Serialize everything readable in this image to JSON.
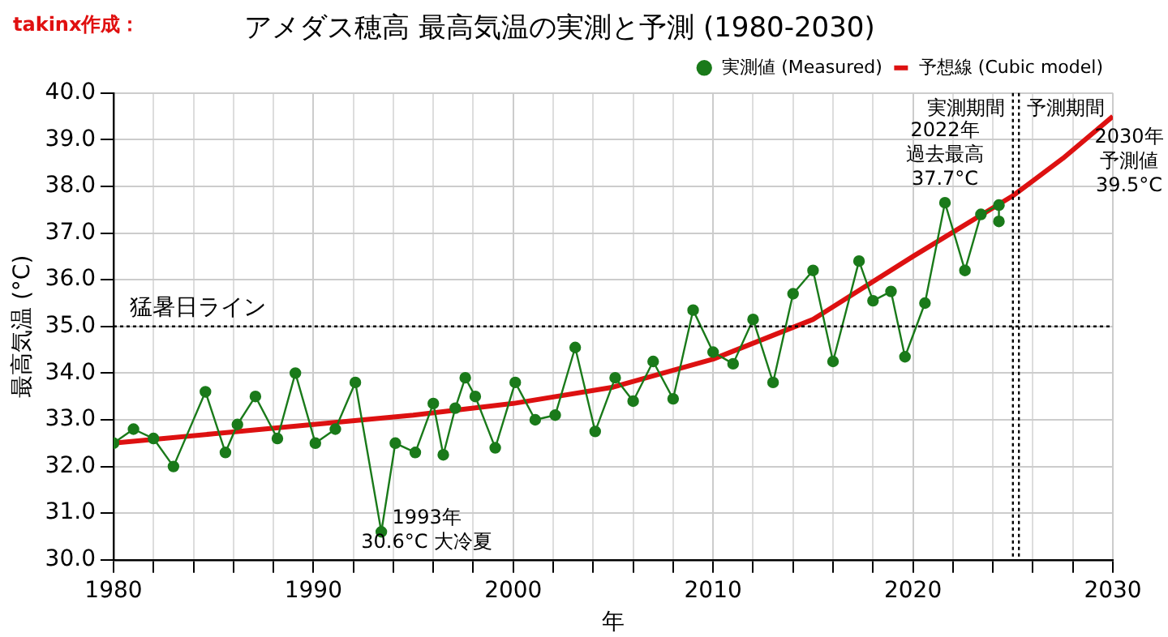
{
  "chart_data": {
    "type": "line",
    "title": "アメダス穂高 最高気温の実測と予測 (1980-2030)",
    "xlabel": "年",
    "ylabel": "最高気温 (°C)",
    "xlim": [
      1980,
      2030
    ],
    "xticks": [
      1980,
      {
        "value": 1982,
        "label": null
      },
      {
        "value": 1984,
        "label": null
      },
      {
        "value": 1986,
        "label": null
      },
      {
        "value": 1988,
        "label": null
      },
      1990,
      {
        "value": 1992,
        "label": null
      },
      {
        "value": 1994,
        "label": null
      },
      {
        "value": 1996,
        "label": null
      },
      {
        "value": 1998,
        "label": null
      },
      2000,
      {
        "value": 2002,
        "label": null
      },
      {
        "value": 2004,
        "label": null
      },
      {
        "value": 2006,
        "label": null
      },
      {
        "value": 2008,
        "label": null
      },
      2010,
      {
        "value": 2012,
        "label": null
      },
      {
        "value": 2014,
        "label": null
      },
      {
        "value": 2016,
        "label": null
      },
      {
        "value": 2018,
        "label": null
      },
      2020,
      {
        "value": 2022,
        "label": null
      },
      {
        "value": 2024,
        "label": null
      },
      {
        "value": 2026,
        "label": null
      },
      {
        "value": 2028,
        "label": null
      },
      2030
    ],
    "ylim": [
      30,
      40
    ],
    "yticks": [
      {
        "value": 30,
        "label": "30.0"
      },
      {
        "value": 31,
        "label": "31.0"
      },
      {
        "value": 32,
        "label": "32.0"
      },
      {
        "value": 33,
        "label": "33.0"
      },
      {
        "value": 34,
        "label": "34.0"
      },
      {
        "value": 35,
        "label": "35.0"
      },
      {
        "value": 36,
        "label": "36.0"
      },
      {
        "value": 37,
        "label": "37.0"
      },
      {
        "value": 38,
        "label": "38.0"
      },
      {
        "value": 39,
        "label": "39.0"
      },
      {
        "value": 40,
        "label": "40.0"
      }
    ],
    "grid": true,
    "legend": "top right",
    "series": [
      {
        "name": "実測値 (Measured)",
        "color": "#1a7a1a",
        "marker": "circle",
        "x": [
          1980,
          1981,
          1982,
          1983,
          1984.6,
          1985.6,
          1986.2,
          1987.1,
          1988.2,
          1989.1,
          1990.1,
          1991.1,
          1992.1,
          1993.4,
          1994.1,
          1995.1,
          1996,
          1996.5,
          1997.1,
          1997.6,
          1998.1,
          1999.1,
          2000.1,
          2001.1,
          2002.1,
          2003.1,
          2004.1,
          2005.1,
          2006,
          2007,
          2008,
          2009,
          2010,
          2011,
          2012,
          2013,
          2014,
          2015,
          2016,
          2017.3,
          2018,
          2018.9,
          2019.6,
          2020.6,
          2021.6,
          2022.6,
          2023.4,
          2024.3,
          2024.3
        ],
        "values": [
          32.5,
          32.8,
          32.6,
          32.0,
          33.6,
          32.3,
          32.9,
          33.5,
          32.6,
          34.0,
          32.5,
          32.8,
          33.8,
          30.6,
          32.5,
          32.3,
          33.35,
          32.25,
          33.25,
          33.9,
          33.5,
          32.4,
          33.8,
          33.0,
          33.1,
          34.55,
          32.75,
          33.9,
          33.4,
          34.25,
          33.45,
          35.35,
          34.45,
          34.2,
          35.15,
          33.8,
          35.7,
          36.2,
          34.25,
          36.4,
          35.55,
          35.75,
          34.35,
          35.5,
          37.65,
          36.2,
          37.4,
          37.6,
          37.25
        ]
      },
      {
        "name": "予想線 (Cubic model)",
        "color": "#dd1111",
        "marker": "none",
        "x": [
          1980,
          1985,
          1990,
          1995,
          2000,
          2005,
          2010,
          2015,
          2020,
          2025,
          2027.5,
          2030
        ],
        "values": [
          32.5,
          32.7,
          32.9,
          33.1,
          33.35,
          33.7,
          34.3,
          35.15,
          36.5,
          37.8,
          38.6,
          39.5
        ]
      }
    ],
    "ref_lines": [
      {
        "axis": "y",
        "value": 35,
        "label": "猛暑日ライン",
        "line_style": "dotted"
      },
      {
        "axis": "x",
        "value": 2025,
        "label": "実測期間",
        "line_style": "dotted"
      },
      {
        "axis": "x",
        "value": 2025.3,
        "label": "予測期間",
        "line_style": "dotted"
      }
    ],
    "annotations": [
      "1993年",
      {
        "text": "30.6°C 大冷夏",
        "x": 1993.4,
        "y": 30.6
      },
      "2022年",
      "過去最高",
      {
        "text": "37.7°C",
        "x": 2021.6,
        "y": 37.65
      },
      "2030年",
      "予測値",
      {
        "text": "39.5°C",
        "x": 2030,
        "y": 39.5
      },
      "takinx作成："
    ]
  }
}
